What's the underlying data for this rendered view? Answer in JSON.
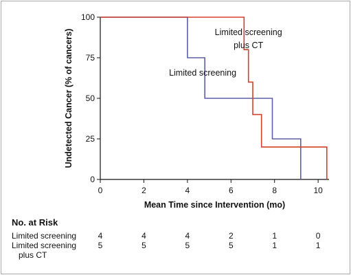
{
  "chart_data": {
    "type": "line",
    "step": true,
    "xlabel": "Mean Time since Intervention (mo)",
    "ylabel": "Undetected Cancer (% of cancers)",
    "xlim": [
      0,
      10.5
    ],
    "ylim": [
      0,
      100
    ],
    "xticks": [
      0,
      2,
      4,
      6,
      8,
      10
    ],
    "yticks": [
      0,
      25,
      50,
      75,
      100
    ],
    "grid": false,
    "series": [
      {
        "name": "Limited screening",
        "color": "#5b5fa6",
        "x": [
          0,
          4.0,
          4.0,
          4.8,
          4.8,
          7.9,
          7.9,
          9.2,
          9.2
        ],
        "y": [
          100,
          100,
          75,
          75,
          50,
          50,
          25,
          25,
          0
        ]
      },
      {
        "name": "Limited screening plus CT",
        "color": "#d2402a",
        "x": [
          0,
          6.6,
          6.6,
          6.8,
          6.8,
          7.0,
          7.0,
          7.4,
          7.4,
          10.4,
          10.4
        ],
        "y": [
          100,
          100,
          80,
          80,
          60,
          60,
          40,
          40,
          20,
          20,
          0
        ]
      }
    ],
    "annotations": [
      {
        "text": "Limited screening",
        "x": 4.7,
        "y": 64
      },
      {
        "text": "Limited screening",
        "x": 6.8,
        "y": 89
      },
      {
        "text": "plus CT",
        "x": 6.8,
        "y": 81
      }
    ]
  },
  "risk_table": {
    "title": "No. at Risk",
    "columns": [
      0,
      2,
      4,
      6,
      8,
      10
    ],
    "rows": [
      {
        "label": "Limited screening",
        "values": [
          "4",
          "4",
          "4",
          "2",
          "1",
          "0"
        ]
      },
      {
        "label": "Limited screening",
        "label2": "plus CT",
        "values": [
          "5",
          "5",
          "5",
          "5",
          "1",
          "1"
        ]
      }
    ]
  }
}
